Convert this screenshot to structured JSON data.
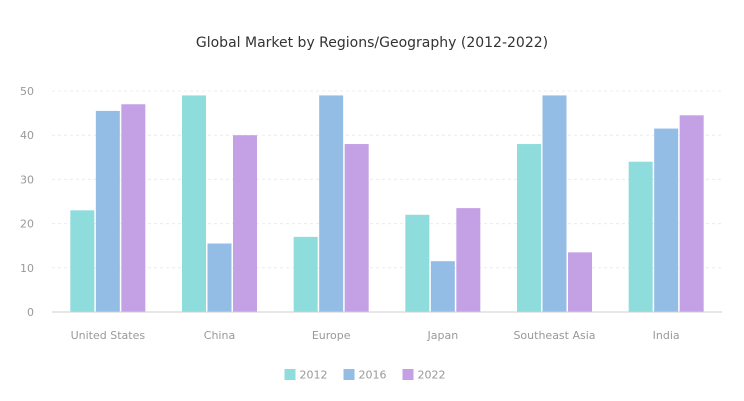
{
  "chart_data": {
    "type": "bar",
    "title": "Global Market by Regions/Geography (2012-2022)",
    "xlabel": "",
    "ylabel": "",
    "ylim": [
      0,
      50
    ],
    "yticks": [
      0,
      10,
      20,
      30,
      40,
      50
    ],
    "grid": true,
    "legend_position": "bottom",
    "categories": [
      "United States",
      "China",
      "Europe",
      "Japan",
      "Southeast Asia",
      "India"
    ],
    "series": [
      {
        "name": "2012",
        "color": "#8edcdc",
        "values": [
          23,
          49,
          17,
          22,
          38,
          34
        ]
      },
      {
        "name": "2016",
        "color": "#94bde6",
        "values": [
          45.5,
          15.5,
          49,
          11.5,
          49,
          41.5
        ]
      },
      {
        "name": "2022",
        "color": "#c3a1e4",
        "values": [
          47,
          40,
          38,
          23.5,
          13.5,
          44.5
        ]
      }
    ]
  }
}
